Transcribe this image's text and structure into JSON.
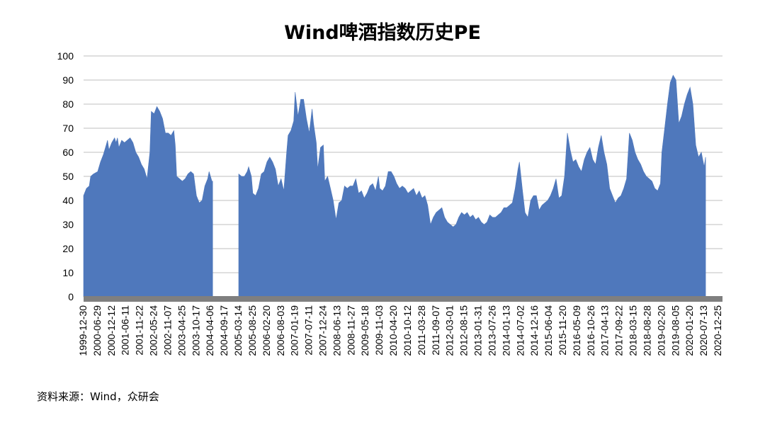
{
  "chart_data": {
    "type": "area",
    "title": "Wind啤酒指数历史PE",
    "xlabel": "",
    "ylabel": "",
    "ylim": [
      0,
      100
    ],
    "yticks": [
      0,
      10,
      20,
      30,
      40,
      50,
      60,
      70,
      80,
      90,
      100
    ],
    "grid": true,
    "legend": "none",
    "colors": {
      "area": "#4f78bc",
      "zero_band": "#7f7f7f",
      "grid": "#bfbfbf"
    },
    "x_tick_labels": [
      "1999-12-30",
      "2000-06-29",
      "2000-12-12",
      "2001-06-11",
      "2001-11-22",
      "2002-05-24",
      "2002-11-07",
      "2003-04-25",
      "2003-10-17",
      "2004-04-06",
      "2004-09-17",
      "2005-03-14",
      "2005-08-25",
      "2006-02-20",
      "2006-08-03",
      "2007-01-19",
      "2007-07-11",
      "2007-12-24",
      "2008-06-13",
      "2008-11-27",
      "2009-05-18",
      "2009-11-03",
      "2010-04-20",
      "2010-10-12",
      "2011-03-28",
      "2011-09-07",
      "2012-03-01",
      "2012-08-15",
      "2013-01-31",
      "2013-07-26",
      "2014-01-13",
      "2014-07-02",
      "2014-12-16",
      "2015-06-04",
      "2015-11-20",
      "2016-05-09",
      "2016-10-26",
      "2017-04-13",
      "2017-09-22",
      "2018-03-15",
      "2018-08-28",
      "2019-02-20",
      "2019-08-05",
      "2020-01-20",
      "2020-07-13",
      "2020-12-25"
    ],
    "series": [
      {
        "values": [
          [
            0.0,
            42
          ],
          [
            0.2,
            45
          ],
          [
            0.4,
            46
          ],
          [
            0.5,
            50
          ],
          [
            0.7,
            51
          ],
          [
            1.0,
            52
          ],
          [
            1.2,
            56
          ],
          [
            1.4,
            59
          ],
          [
            1.6,
            63
          ],
          [
            1.7,
            65
          ],
          [
            1.8,
            61
          ],
          [
            2.0,
            64
          ],
          [
            2.2,
            66
          ],
          [
            2.3,
            64
          ],
          [
            2.4,
            66
          ],
          [
            2.5,
            62
          ],
          [
            2.7,
            65
          ],
          [
            2.9,
            64
          ],
          [
            3.1,
            65
          ],
          [
            3.3,
            66
          ],
          [
            3.5,
            64
          ],
          [
            3.7,
            60
          ],
          [
            3.9,
            58
          ],
          [
            4.1,
            55
          ],
          [
            4.3,
            53
          ],
          [
            4.5,
            49
          ],
          [
            4.7,
            60
          ],
          [
            4.8,
            77
          ],
          [
            5.0,
            76
          ],
          [
            5.2,
            79
          ],
          [
            5.4,
            77
          ],
          [
            5.6,
            74
          ],
          [
            5.8,
            68
          ],
          [
            6.0,
            68
          ],
          [
            6.2,
            67
          ],
          [
            6.4,
            69
          ],
          [
            6.5,
            63
          ],
          [
            6.6,
            50
          ],
          [
            6.8,
            49
          ],
          [
            7.0,
            48
          ],
          [
            7.2,
            49
          ],
          [
            7.4,
            51
          ],
          [
            7.6,
            52
          ],
          [
            7.8,
            51
          ],
          [
            8.0,
            42
          ],
          [
            8.2,
            39
          ],
          [
            8.4,
            40
          ],
          [
            8.6,
            46
          ],
          [
            8.8,
            49
          ],
          [
            8.9,
            52
          ],
          [
            9.1,
            48
          ],
          [
            9.15,
            48
          ],
          [
            9.15,
            0
          ],
          [
            11.0,
            0
          ],
          [
            11.0,
            51
          ],
          [
            11.2,
            50
          ],
          [
            11.4,
            50
          ],
          [
            11.6,
            52
          ],
          [
            11.7,
            54
          ],
          [
            11.9,
            50
          ],
          [
            12.0,
            43
          ],
          [
            12.2,
            42
          ],
          [
            12.4,
            45
          ],
          [
            12.6,
            51
          ],
          [
            12.8,
            52
          ],
          [
            13.0,
            56
          ],
          [
            13.2,
            58
          ],
          [
            13.4,
            56
          ],
          [
            13.6,
            53
          ],
          [
            13.8,
            46
          ],
          [
            14.0,
            49
          ],
          [
            14.2,
            44
          ],
          [
            14.4,
            60
          ],
          [
            14.5,
            67
          ],
          [
            14.7,
            69
          ],
          [
            14.9,
            73
          ],
          [
            15.0,
            85
          ],
          [
            15.2,
            75
          ],
          [
            15.4,
            82
          ],
          [
            15.6,
            82
          ],
          [
            15.8,
            74
          ],
          [
            16.0,
            68
          ],
          [
            16.2,
            78
          ],
          [
            16.3,
            72
          ],
          [
            16.5,
            64
          ],
          [
            16.6,
            53
          ],
          [
            16.8,
            62
          ],
          [
            17.0,
            63
          ],
          [
            17.1,
            48
          ],
          [
            17.3,
            50
          ],
          [
            17.5,
            45
          ],
          [
            17.7,
            40
          ],
          [
            17.9,
            32
          ],
          [
            18.1,
            39
          ],
          [
            18.3,
            40
          ],
          [
            18.5,
            46
          ],
          [
            18.7,
            45
          ],
          [
            18.9,
            46
          ],
          [
            19.1,
            46
          ],
          [
            19.3,
            49
          ],
          [
            19.5,
            43
          ],
          [
            19.7,
            44
          ],
          [
            19.9,
            41
          ],
          [
            20.1,
            43
          ],
          [
            20.3,
            46
          ],
          [
            20.5,
            47
          ],
          [
            20.7,
            44
          ],
          [
            20.9,
            50
          ],
          [
            21.0,
            45
          ],
          [
            21.2,
            44
          ],
          [
            21.4,
            46
          ],
          [
            21.6,
            52
          ],
          [
            21.8,
            52
          ],
          [
            22.0,
            50
          ],
          [
            22.2,
            47
          ],
          [
            22.4,
            45
          ],
          [
            22.6,
            46
          ],
          [
            22.8,
            45
          ],
          [
            23.0,
            43
          ],
          [
            23.2,
            44
          ],
          [
            23.4,
            45
          ],
          [
            23.6,
            42
          ],
          [
            23.8,
            44
          ],
          [
            24.0,
            41
          ],
          [
            24.2,
            42
          ],
          [
            24.4,
            38
          ],
          [
            24.6,
            30
          ],
          [
            24.8,
            33
          ],
          [
            25.0,
            35
          ],
          [
            25.2,
            36
          ],
          [
            25.4,
            37
          ],
          [
            25.6,
            33
          ],
          [
            25.8,
            31
          ],
          [
            26.0,
            30
          ],
          [
            26.2,
            29
          ],
          [
            26.4,
            30
          ],
          [
            26.6,
            33
          ],
          [
            26.8,
            35
          ],
          [
            27.0,
            34
          ],
          [
            27.2,
            35
          ],
          [
            27.4,
            33
          ],
          [
            27.6,
            34
          ],
          [
            27.8,
            32
          ],
          [
            28.0,
            33
          ],
          [
            28.2,
            31
          ],
          [
            28.4,
            30
          ],
          [
            28.6,
            31
          ],
          [
            28.8,
            34
          ],
          [
            29.0,
            33
          ],
          [
            29.2,
            33
          ],
          [
            29.4,
            34
          ],
          [
            29.6,
            35
          ],
          [
            29.8,
            37
          ],
          [
            30.0,
            37
          ],
          [
            30.2,
            38
          ],
          [
            30.4,
            39
          ],
          [
            30.6,
            45
          ],
          [
            30.8,
            53
          ],
          [
            30.9,
            56
          ],
          [
            31.1,
            45
          ],
          [
            31.3,
            35
          ],
          [
            31.5,
            33
          ],
          [
            31.7,
            40
          ],
          [
            31.9,
            42
          ],
          [
            32.1,
            42
          ],
          [
            32.3,
            36
          ],
          [
            32.5,
            38
          ],
          [
            32.7,
            39
          ],
          [
            32.9,
            40
          ],
          [
            33.1,
            42
          ],
          [
            33.3,
            45
          ],
          [
            33.5,
            49
          ],
          [
            33.7,
            41
          ],
          [
            33.9,
            42
          ],
          [
            34.1,
            50
          ],
          [
            34.3,
            68
          ],
          [
            34.5,
            61
          ],
          [
            34.7,
            56
          ],
          [
            34.9,
            57
          ],
          [
            35.1,
            54
          ],
          [
            35.3,
            52
          ],
          [
            35.5,
            57
          ],
          [
            35.7,
            60
          ],
          [
            35.9,
            62
          ],
          [
            36.1,
            57
          ],
          [
            36.3,
            55
          ],
          [
            36.5,
            62
          ],
          [
            36.7,
            67
          ],
          [
            36.9,
            60
          ],
          [
            37.1,
            55
          ],
          [
            37.3,
            45
          ],
          [
            37.5,
            42
          ],
          [
            37.7,
            39
          ],
          [
            37.9,
            41
          ],
          [
            38.1,
            42
          ],
          [
            38.3,
            45
          ],
          [
            38.5,
            49
          ],
          [
            38.7,
            68
          ],
          [
            38.9,
            65
          ],
          [
            39.1,
            60
          ],
          [
            39.3,
            57
          ],
          [
            39.5,
            55
          ],
          [
            39.7,
            52
          ],
          [
            39.9,
            50
          ],
          [
            40.1,
            49
          ],
          [
            40.3,
            48
          ],
          [
            40.5,
            45
          ],
          [
            40.7,
            44
          ],
          [
            40.9,
            47
          ],
          [
            41.0,
            60
          ],
          [
            41.2,
            70
          ],
          [
            41.4,
            80
          ],
          [
            41.6,
            89
          ],
          [
            41.8,
            92
          ],
          [
            42.0,
            90
          ],
          [
            42.2,
            72
          ],
          [
            42.4,
            75
          ],
          [
            42.6,
            80
          ],
          [
            42.8,
            84
          ],
          [
            43.0,
            87
          ],
          [
            43.2,
            80
          ],
          [
            43.4,
            63
          ],
          [
            43.6,
            58
          ],
          [
            43.8,
            60
          ],
          [
            44.0,
            54
          ],
          [
            44.1,
            58
          ],
          [
            44.1,
            0
          ]
        ]
      }
    ]
  },
  "source_note": "资料来源：Wind，众研会"
}
